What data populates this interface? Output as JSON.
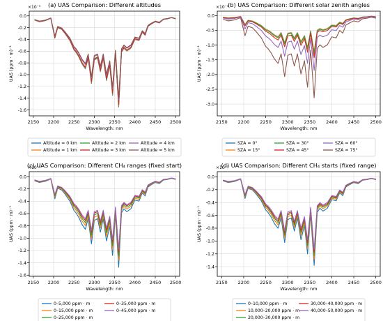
{
  "chart_data": [
    {
      "type": "line",
      "title": "(a) UAS Comparison: Different altitudes",
      "xlabel": "Wavelength: nm",
      "ylabel": "UAS (ppm · m)⁻¹",
      "y_multiplier": "×10⁻⁵",
      "xlim": [
        2140,
        2510
      ],
      "ylim": [
        -1.7,
        0.08
      ],
      "xticks": [
        2150,
        2200,
        2250,
        2300,
        2350,
        2400,
        2450,
        2500
      ],
      "yticks": [
        -1.6,
        -1.4,
        -1.2,
        -1.0,
        -0.8,
        -0.6,
        -0.4,
        -0.2,
        0.0
      ],
      "grid": true,
      "legend_position": "below",
      "legend_columns": 3,
      "series": [
        {
          "name": "Altitude = 0 km",
          "color": "#1f77b4",
          "scale": 1.0
        },
        {
          "name": "Altitude = 1 km",
          "color": "#ff7f0e",
          "scale": 0.99
        },
        {
          "name": "Altitude = 2 km",
          "color": "#2ca02c",
          "scale": 0.98
        },
        {
          "name": "Altitude = 3 km",
          "color": "#d62728",
          "scale": 0.97
        },
        {
          "name": "Altitude = 4 km",
          "color": "#9467bd",
          "scale": 0.92
        },
        {
          "name": "Altitude = 5 km",
          "color": "#8c564b",
          "scale": 0.9
        }
      ]
    },
    {
      "type": "line",
      "title": "(b) UAS Comparison: Different solar zenith angles",
      "xlabel": "Wavelength: nm",
      "ylabel": "UAS (ppm · m)⁻¹",
      "y_multiplier": "×10⁻⁵",
      "xlim": [
        2140,
        2510
      ],
      "ylim": [
        -3.4,
        0.15
      ],
      "xticks": [
        2150,
        2200,
        2250,
        2300,
        2350,
        2400,
        2450,
        2500
      ],
      "yticks": [
        -3.0,
        -2.5,
        -2.0,
        -1.5,
        -1.0,
        -0.5,
        0.0
      ],
      "grid": true,
      "legend_position": "below",
      "legend_columns": 3,
      "series": [
        {
          "name": "SZA = 0°",
          "color": "#1f77b4",
          "scale": 0.8
        },
        {
          "name": "SZA = 15°",
          "color": "#ff7f0e",
          "scale": 0.81
        },
        {
          "name": "SZA = 30°",
          "color": "#2ca02c",
          "scale": 0.84
        },
        {
          "name": "SZA = 45°",
          "color": "#d62728",
          "scale": 0.92
        },
        {
          "name": "SZA = 60°",
          "color": "#9467bd",
          "scale": 1.2
        },
        {
          "name": "SZA = 75°",
          "color": "#8c564b",
          "scale": 1.8
        }
      ]
    },
    {
      "type": "line",
      "title": "(c) UAS Comparison: Different CH₄ ranges (fixed start)",
      "xlabel": "Wavelength: nm",
      "ylabel": "UAS (ppm · m)⁻¹",
      "y_multiplier": "×10⁻⁵",
      "xlim": [
        2140,
        2510
      ],
      "ylim": [
        -1.62,
        0.08
      ],
      "xticks": [
        2150,
        2200,
        2250,
        2300,
        2350,
        2400,
        2450,
        2500
      ],
      "yticks": [
        -1.6,
        -1.4,
        -1.2,
        -1.0,
        -0.8,
        -0.6,
        -0.4,
        -0.2,
        0.0
      ],
      "grid": true,
      "legend_position": "below",
      "legend_columns": 2,
      "series": [
        {
          "name": "0–5,000 ppm · m",
          "color": "#1f77b4",
          "scale": 0.95
        },
        {
          "name": "0–15,000 ppm · m",
          "color": "#ff7f0e",
          "scale": 0.88
        },
        {
          "name": "0–25,000 ppm · m",
          "color": "#2ca02c",
          "scale": 0.83
        },
        {
          "name": "0–35,000 ppm · m",
          "color": "#d62728",
          "scale": 0.79
        },
        {
          "name": "0–45,000 ppm · m",
          "color": "#9467bd",
          "scale": 0.76
        }
      ]
    },
    {
      "type": "line",
      "title": "(d) UAS Comparison: Different CH₄ starts (fixed range)",
      "xlabel": "Wavelength: nm",
      "ylabel": "UAS (ppm · m)⁻¹",
      "y_multiplier": "×10⁻⁵",
      "xlim": [
        2140,
        2510
      ],
      "ylim": [
        -1.55,
        0.08
      ],
      "xticks": [
        2150,
        2200,
        2250,
        2300,
        2350,
        2400,
        2450,
        2500
      ],
      "yticks": [
        -1.4,
        -1.2,
        -1.0,
        -0.8,
        -0.6,
        -0.4,
        -0.2,
        0.0
      ],
      "grid": true,
      "legend_position": "below",
      "legend_columns": 2,
      "series": [
        {
          "name": "0–10,000 ppm · m",
          "color": "#1f77b4",
          "scale": 0.89
        },
        {
          "name": "10,000–20,000 ppm · m",
          "color": "#ff7f0e",
          "scale": 0.83
        },
        {
          "name": "20,000–30,000 ppm · m",
          "color": "#2ca02c",
          "scale": 0.79
        },
        {
          "name": "30,000–40,000 ppm · m",
          "color": "#d62728",
          "scale": 0.76
        },
        {
          "name": "40,000–50,000 ppm · m",
          "color": "#9467bd",
          "scale": 0.73
        }
      ]
    }
  ],
  "base_profile": {
    "x": [
      2153,
      2165,
      2180,
      2193,
      2203,
      2210,
      2220,
      2228,
      2240,
      2250,
      2255,
      2262,
      2270,
      2278,
      2285,
      2293,
      2300,
      2308,
      2315,
      2322,
      2330,
      2338,
      2345,
      2352,
      2360,
      2367,
      2373,
      2380,
      2390,
      2400,
      2410,
      2418,
      2425,
      2432,
      2440,
      2450,
      2460,
      2470,
      2480,
      2490,
      2500
    ],
    "y": [
      -0.07,
      -0.1,
      -0.08,
      -0.04,
      -0.38,
      -0.2,
      -0.23,
      -0.3,
      -0.42,
      -0.58,
      -0.62,
      -0.7,
      -0.82,
      -0.9,
      -0.72,
      -1.15,
      -0.75,
      -0.72,
      -0.95,
      -0.72,
      -1.1,
      -0.85,
      -1.35,
      -0.65,
      -1.55,
      -0.62,
      -0.55,
      -0.6,
      -0.55,
      -0.4,
      -0.42,
      -0.28,
      -0.33,
      -0.18,
      -0.14,
      -0.1,
      -0.12,
      -0.06,
      -0.05,
      -0.03,
      -0.05
    ]
  }
}
